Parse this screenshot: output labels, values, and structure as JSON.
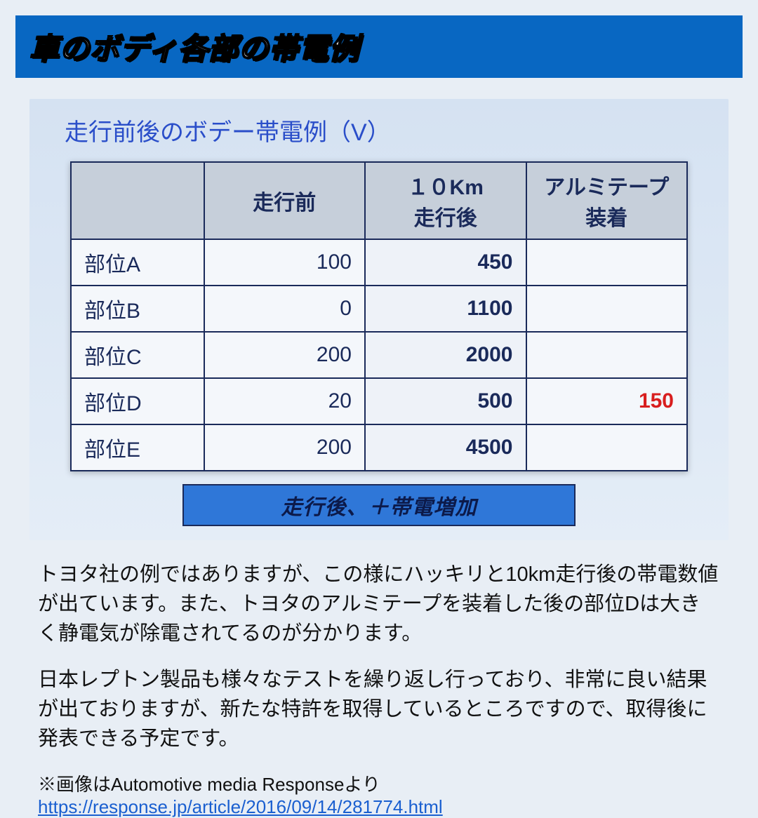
{
  "header": {
    "title": "車のボディ各部の帯電例"
  },
  "subtitle": "走行前後のボデー帯電例（V）",
  "table": {
    "columns": [
      "",
      "走行前",
      "１０Km\n走行後",
      "アルミテープ\n装着"
    ],
    "rows": [
      {
        "label": "部位A",
        "before": "100",
        "after": "450",
        "tape": ""
      },
      {
        "label": "部位B",
        "before": "0",
        "after": "1100",
        "tape": ""
      },
      {
        "label": "部位C",
        "before": "200",
        "after": "2000",
        "tape": ""
      },
      {
        "label": "部位D",
        "before": "20",
        "after": "500",
        "tape": "150"
      },
      {
        "label": "部位E",
        "before": "200",
        "after": "4500",
        "tape": ""
      }
    ],
    "highlight_color": "#d81e1e",
    "header_bg": "#c6cfda",
    "border_color": "#1a2a5a"
  },
  "caption": "走行後、＋帯電増加",
  "paragraphs": [
    "トヨタ社の例ではありますが、この様にハッキリと10km走行後の帯電数値が出ています。また、トヨタのアルミテープを装着した後の部位Dは大きく静電気が除電されてるのが分かります。",
    "日本レプトン製品も様々なテストを繰り返し行っており、非常に良い結果が出ておりますが、新たな特許を取得しているところですので、取得後に発表できる予定です。"
  ],
  "credit": {
    "prefix": "※画像はAutomotive media Responseより",
    "url": "https://response.jp/article/2016/09/14/281774.html"
  }
}
